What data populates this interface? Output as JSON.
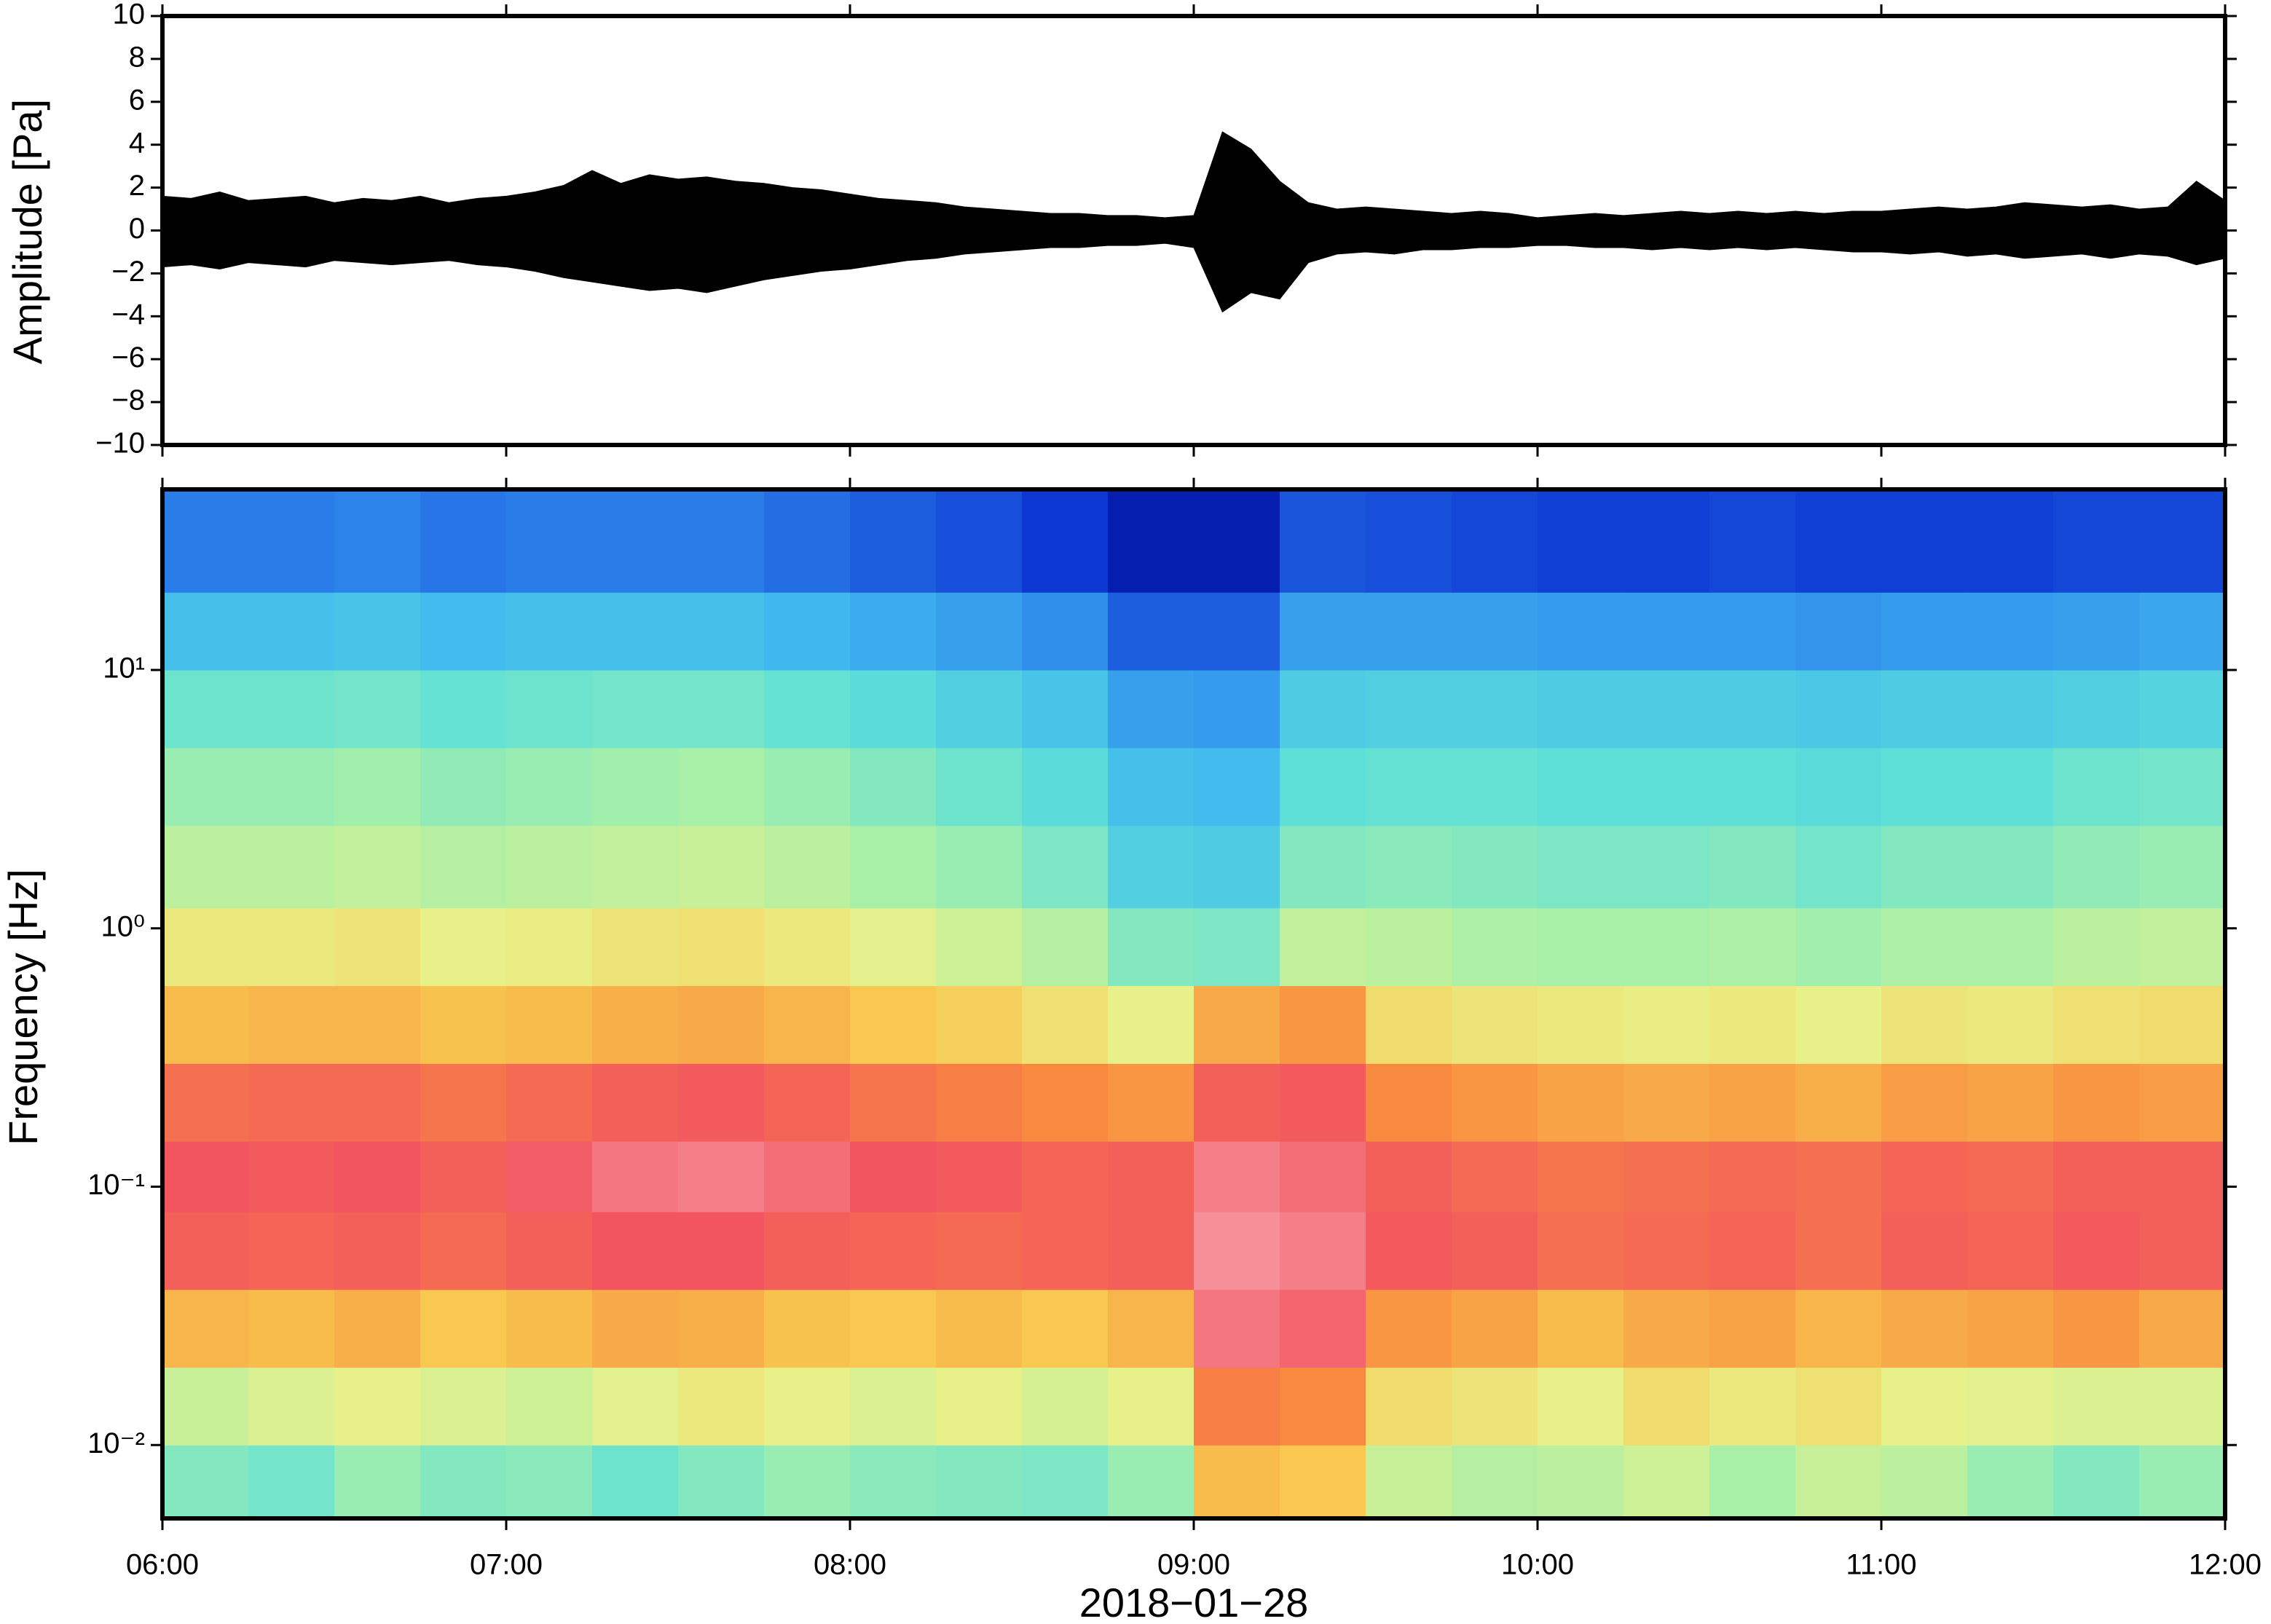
{
  "chart_data": [
    {
      "type": "line",
      "ylabel": "Amplitude [Pa]",
      "color": "#000000",
      "ylim": [
        -10,
        10
      ],
      "yticks": [
        {
          "value": -10,
          "label": "−10"
        },
        {
          "value": -8,
          "label": "−8"
        },
        {
          "value": -6,
          "label": "−6"
        },
        {
          "value": -4,
          "label": "−4"
        },
        {
          "value": -2,
          "label": "−2"
        },
        0,
        2,
        4,
        6,
        8,
        10
      ],
      "xlim": [
        "06:00",
        "12:00"
      ],
      "xticks": [
        "06:00",
        "07:00",
        "08:00",
        "09:00",
        "10:00",
        "11:00",
        "12:00"
      ],
      "x": [
        "06:00",
        "06:05",
        "06:10",
        "06:15",
        "06:20",
        "06:25",
        "06:30",
        "06:35",
        "06:40",
        "06:45",
        "06:50",
        "06:55",
        "07:00",
        "07:05",
        "07:10",
        "07:15",
        "07:20",
        "07:25",
        "07:30",
        "07:35",
        "07:40",
        "07:45",
        "07:50",
        "07:55",
        "08:00",
        "08:05",
        "08:10",
        "08:15",
        "08:20",
        "08:25",
        "08:30",
        "08:35",
        "08:40",
        "08:45",
        "08:50",
        "08:55",
        "09:00",
        "09:05",
        "09:10",
        "09:15",
        "09:20",
        "09:25",
        "09:30",
        "09:35",
        "09:40",
        "09:45",
        "09:50",
        "09:55",
        "10:00",
        "10:05",
        "10:10",
        "10:15",
        "10:20",
        "10:25",
        "10:30",
        "10:35",
        "10:40",
        "10:45",
        "10:50",
        "10:55",
        "11:00",
        "11:05",
        "11:10",
        "11:15",
        "11:20",
        "11:25",
        "11:30",
        "11:35",
        "11:40",
        "11:45",
        "11:50",
        "11:55",
        "12:00"
      ],
      "upper": [
        1.6,
        1.5,
        1.8,
        1.4,
        1.5,
        1.6,
        1.3,
        1.5,
        1.4,
        1.6,
        1.3,
        1.5,
        1.6,
        1.8,
        2.1,
        2.8,
        2.2,
        2.6,
        2.4,
        2.5,
        2.3,
        2.2,
        2.0,
        1.9,
        1.7,
        1.5,
        1.4,
        1.3,
        1.1,
        1.0,
        0.9,
        0.8,
        0.8,
        0.7,
        0.7,
        0.6,
        0.7,
        4.6,
        3.8,
        2.3,
        1.3,
        1.0,
        1.1,
        1.0,
        0.9,
        0.8,
        0.9,
        0.8,
        0.6,
        0.7,
        0.8,
        0.7,
        0.8,
        0.9,
        0.8,
        0.9,
        0.8,
        0.9,
        0.8,
        0.9,
        0.9,
        1.0,
        1.1,
        1.0,
        1.1,
        1.3,
        1.2,
        1.1,
        1.2,
        1.0,
        1.1,
        2.3,
        1.4
      ],
      "lower": [
        -1.7,
        -1.6,
        -1.8,
        -1.5,
        -1.6,
        -1.7,
        -1.4,
        -1.5,
        -1.6,
        -1.5,
        -1.4,
        -1.6,
        -1.7,
        -1.9,
        -2.2,
        -2.4,
        -2.6,
        -2.8,
        -2.7,
        -2.9,
        -2.6,
        -2.3,
        -2.1,
        -1.9,
        -1.8,
        -1.6,
        -1.4,
        -1.3,
        -1.1,
        -1.0,
        -0.9,
        -0.8,
        -0.8,
        -0.7,
        -0.7,
        -0.6,
        -0.8,
        -3.8,
        -2.9,
        -3.2,
        -1.5,
        -1.1,
        -1.0,
        -1.1,
        -0.9,
        -0.9,
        -0.8,
        -0.8,
        -0.7,
        -0.7,
        -0.8,
        -0.8,
        -0.9,
        -0.8,
        -0.9,
        -0.8,
        -0.9,
        -0.8,
        -0.9,
        -1.0,
        -1.0,
        -1.1,
        -1.0,
        -1.2,
        -1.1,
        -1.3,
        -1.2,
        -1.1,
        -1.3,
        -1.1,
        -1.2,
        -1.6,
        -1.3
      ]
    },
    {
      "type": "heatmap",
      "ylabel": "Frequency [Hz]",
      "xlabel": "2018−01−28",
      "ylog": true,
      "ylim": [
        0.0052,
        50
      ],
      "yticks": [
        {
          "value": 0.01,
          "label": "10⁻²"
        },
        {
          "value": 0.1,
          "label": "10⁻¹"
        },
        {
          "value": 1,
          "label": "10⁰"
        },
        {
          "value": 10,
          "label": "10¹"
        }
      ],
      "xlim": [
        "06:00",
        "12:00"
      ],
      "xticks": [
        "06:00",
        "07:00",
        "08:00",
        "09:00",
        "10:00",
        "11:00",
        "12:00"
      ],
      "xbins": [
        "06:00",
        "06:15",
        "06:30",
        "06:45",
        "07:00",
        "07:15",
        "07:30",
        "07:45",
        "08:00",
        "08:15",
        "08:30",
        "08:45",
        "09:00",
        "09:15",
        "09:30",
        "09:45",
        "10:00",
        "10:15",
        "10:30",
        "10:45",
        "11:00",
        "11:15",
        "11:30",
        "11:45",
        "12:00"
      ],
      "ybins": [
        0.0052,
        0.01,
        0.02,
        0.04,
        0.08,
        0.15,
        0.3,
        0.6,
        1.2,
        2.5,
        5,
        10,
        20,
        50
      ],
      "clim": [
        0,
        10
      ],
      "colorscale": [
        "#00047e",
        "#0a2fd0",
        "#2a7de8",
        "#3fb8f0",
        "#5ee0d8",
        "#a8f0a8",
        "#e8f08a",
        "#f8c850",
        "#f88a40",
        "#f25560",
        "#f8a8b0"
      ],
      "values": [
        [
          4.5,
          4.3,
          4.8,
          4.5,
          4.6,
          4.2,
          4.5,
          4.8,
          4.6,
          4.5,
          4.4,
          4.8,
          7.2,
          7.0,
          5.5,
          5.2,
          5.3,
          5.6,
          5.0,
          5.5,
          5.3,
          4.8,
          4.5,
          4.8
        ],
        [
          5.5,
          5.8,
          6.0,
          5.8,
          5.6,
          5.9,
          6.2,
          6.0,
          5.8,
          6.0,
          5.7,
          6.0,
          8.2,
          8.0,
          6.5,
          6.3,
          6.0,
          6.5,
          6.2,
          6.4,
          6.0,
          5.9,
          5.8,
          5.8
        ],
        [
          7.3,
          7.2,
          7.4,
          7.0,
          7.2,
          7.5,
          7.4,
          7.1,
          7.0,
          7.2,
          7.0,
          7.3,
          9.4,
          9.2,
          7.8,
          7.6,
          7.2,
          7.5,
          7.6,
          7.3,
          7.5,
          7.6,
          7.8,
          7.5
        ],
        [
          8.8,
          8.7,
          8.8,
          8.6,
          8.8,
          9.0,
          9.0,
          8.8,
          8.7,
          8.6,
          8.7,
          8.8,
          9.7,
          9.5,
          8.9,
          8.8,
          8.5,
          8.6,
          8.7,
          8.5,
          8.8,
          8.7,
          8.9,
          8.8
        ],
        [
          9.0,
          8.9,
          9.0,
          8.8,
          9.1,
          9.4,
          9.5,
          9.3,
          9.0,
          8.9,
          8.7,
          8.8,
          9.5,
          9.3,
          8.8,
          8.6,
          8.4,
          8.5,
          8.6,
          8.5,
          8.7,
          8.6,
          8.8,
          8.8
        ],
        [
          8.5,
          8.6,
          8.6,
          8.4,
          8.6,
          8.8,
          8.9,
          8.7,
          8.4,
          8.2,
          8.0,
          7.8,
          8.8,
          8.9,
          8.0,
          7.8,
          7.6,
          7.5,
          7.6,
          7.4,
          7.7,
          7.6,
          7.8,
          7.7
        ],
        [
          7.2,
          7.3,
          7.3,
          7.1,
          7.2,
          7.4,
          7.5,
          7.3,
          7.0,
          6.8,
          6.4,
          6.0,
          7.5,
          7.8,
          6.5,
          6.3,
          6.2,
          6.1,
          6.2,
          6.0,
          6.3,
          6.2,
          6.4,
          6.5
        ],
        [
          6.2,
          6.2,
          6.3,
          6.0,
          6.1,
          6.3,
          6.4,
          6.2,
          5.9,
          5.6,
          5.2,
          4.5,
          4.4,
          5.4,
          5.3,
          5.1,
          5.0,
          5.0,
          5.1,
          4.9,
          5.1,
          5.1,
          5.3,
          5.4
        ],
        [
          5.3,
          5.3,
          5.4,
          5.2,
          5.3,
          5.4,
          5.5,
          5.3,
          5.0,
          4.8,
          4.4,
          3.6,
          3.5,
          4.5,
          4.6,
          4.5,
          4.4,
          4.4,
          4.5,
          4.3,
          4.5,
          4.5,
          4.7,
          4.8
        ],
        [
          4.8,
          4.8,
          4.9,
          4.7,
          4.8,
          4.9,
          5.0,
          4.8,
          4.5,
          4.2,
          3.9,
          3.2,
          3.1,
          4.0,
          4.1,
          4.1,
          4.0,
          4.0,
          4.0,
          3.9,
          4.0,
          4.0,
          4.2,
          4.3
        ],
        [
          4.2,
          4.2,
          4.3,
          4.1,
          4.2,
          4.3,
          4.3,
          4.1,
          3.9,
          3.6,
          3.3,
          2.6,
          2.5,
          3.5,
          3.6,
          3.6,
          3.5,
          3.5,
          3.5,
          3.4,
          3.5,
          3.5,
          3.6,
          3.7
        ],
        [
          3.2,
          3.2,
          3.3,
          3.1,
          3.2,
          3.2,
          3.2,
          3.0,
          2.8,
          2.6,
          2.3,
          1.6,
          1.6,
          2.6,
          2.6,
          2.6,
          2.5,
          2.5,
          2.5,
          2.4,
          2.5,
          2.5,
          2.6,
          2.7
        ],
        [
          2.0,
          2.0,
          2.1,
          1.9,
          2.0,
          2.0,
          2.0,
          1.8,
          1.6,
          1.4,
          1.1,
          0.6,
          0.6,
          1.5,
          1.4,
          1.3,
          1.2,
          1.2,
          1.3,
          1.2,
          1.2,
          1.2,
          1.3,
          1.3
        ]
      ]
    }
  ]
}
